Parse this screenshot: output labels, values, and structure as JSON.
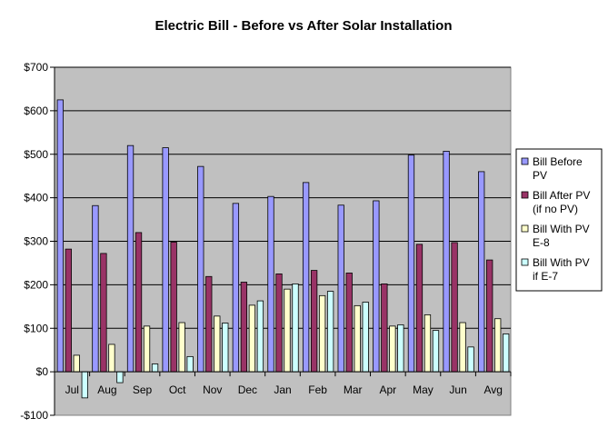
{
  "chart_data": {
    "type": "bar",
    "title": "Electric Bill  - Before vs After Solar Installation",
    "xlabel": "",
    "ylabel": "",
    "ylim": [
      -100,
      700
    ],
    "yticks": [
      -100,
      0,
      100,
      200,
      300,
      400,
      500,
      600,
      700
    ],
    "ytick_labels": [
      "-$100",
      "$0",
      "$100",
      "$200",
      "$300",
      "$400",
      "$500",
      "$600",
      "$700"
    ],
    "grid": true,
    "legend_position": "right",
    "plot_background": "#c0c0c0",
    "categories": [
      "Jul",
      "Aug",
      "Sep",
      "Oct",
      "Nov",
      "Dec",
      "Jan",
      "Feb",
      "Mar",
      "Apr",
      "May",
      "Jun",
      "Avg"
    ],
    "series": [
      {
        "name": "Bill Before PV",
        "legend_lines": [
          "Bill Before",
          "PV"
        ],
        "color": "#9999ff",
        "values": [
          625,
          382,
          520,
          515,
          472,
          387,
          403,
          435,
          383,
          393,
          498,
          507,
          460
        ]
      },
      {
        "name": "Bill After PV (if no PV)",
        "legend_lines": [
          "Bill After PV",
          "(if no PV)"
        ],
        "color": "#993366",
        "values": [
          282,
          272,
          320,
          298,
          219,
          206,
          225,
          233,
          227,
          202,
          293,
          297,
          257
        ]
      },
      {
        "name": "Bill With PV E-8",
        "legend_lines": [
          "Bill With PV",
          "E-8"
        ],
        "color": "#ffffcc",
        "values": [
          38,
          63,
          105,
          113,
          128,
          153,
          190,
          175,
          152,
          105,
          131,
          113,
          122
        ]
      },
      {
        "name": "Bill With PV if E-7",
        "legend_lines": [
          "Bill With PV",
          "if E-7"
        ],
        "color": "#ccffff",
        "values": [
          -60,
          -25,
          18,
          35,
          112,
          163,
          202,
          185,
          160,
          108,
          95,
          57,
          87
        ]
      }
    ]
  }
}
